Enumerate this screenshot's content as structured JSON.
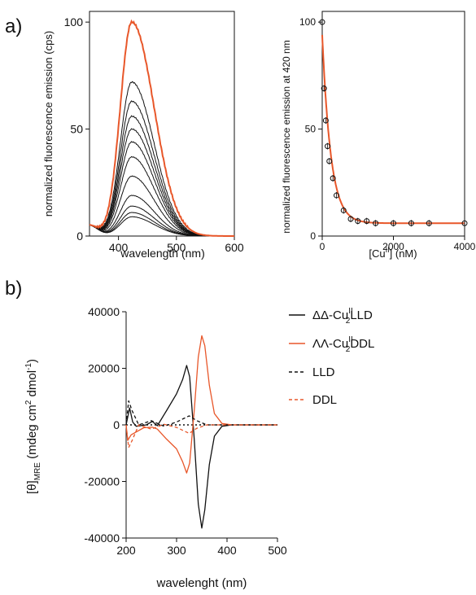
{
  "panels": {
    "a": "a)",
    "b": "b)"
  },
  "chart_data": [
    {
      "id": "a-left",
      "type": "line",
      "xlabel": "wavelength (nm)",
      "ylabel": "normalized fluorescence emission (cps)",
      "xlim": [
        350,
        600
      ],
      "ylim": [
        0,
        105
      ],
      "xticks": [
        "400",
        "500",
        "600"
      ],
      "yticks": [
        "0",
        "50",
        "100"
      ],
      "colors": {
        "highlight": "#e8572a",
        "traces": "#111111"
      },
      "peak_x": 423,
      "series": [
        {
          "peak": 100,
          "highlight": true
        },
        {
          "peak": 72
        },
        {
          "peak": 63
        },
        {
          "peak": 56
        },
        {
          "peak": 50
        },
        {
          "peak": 44
        },
        {
          "peak": 37
        },
        {
          "peak": 28
        },
        {
          "peak": 19
        },
        {
          "peak": 14
        },
        {
          "peak": 11
        },
        {
          "peak": 9
        }
      ]
    },
    {
      "id": "a-right",
      "type": "scatter",
      "xlabel_parts": [
        "[Cu",
        "II",
        "] (nM)"
      ],
      "ylabel": "normalized fluorescence emission at 420 nm",
      "xlim": [
        0,
        4000
      ],
      "ylim": [
        0,
        105
      ],
      "xticks": [
        "0",
        "2000",
        "4000"
      ],
      "yticks": [
        "0",
        "50",
        "100"
      ],
      "points": [
        {
          "x": 0,
          "y": 100
        },
        {
          "x": 50,
          "y": 69
        },
        {
          "x": 100,
          "y": 54
        },
        {
          "x": 150,
          "y": 42
        },
        {
          "x": 200,
          "y": 35
        },
        {
          "x": 300,
          "y": 27
        },
        {
          "x": 400,
          "y": 19
        },
        {
          "x": 600,
          "y": 12
        },
        {
          "x": 800,
          "y": 8
        },
        {
          "x": 1000,
          "y": 7
        },
        {
          "x": 1250,
          "y": 7
        },
        {
          "x": 1500,
          "y": 6
        },
        {
          "x": 2000,
          "y": 6
        },
        {
          "x": 2500,
          "y": 6
        },
        {
          "x": 3000,
          "y": 6
        },
        {
          "x": 4000,
          "y": 6
        }
      ],
      "fit_color": "#e8572a"
    },
    {
      "id": "b",
      "type": "line",
      "xlabel": "wavelenght (nm)",
      "ylabel_parts": [
        "[θ]",
        "MRE",
        " (mdeg cm",
        "2",
        " dmol",
        "-1",
        ")"
      ],
      "xlim": [
        200,
        500
      ],
      "ylim": [
        -40000,
        40000
      ],
      "xticks": [
        "200",
        "300",
        "400",
        "500"
      ],
      "yticks": [
        "40000",
        "20000",
        "0",
        "-20000",
        "-40000"
      ],
      "legend_position": "right",
      "series": [
        {
          "label_parts": [
            "ΔΔ-Cu",
            "II",
            "2",
            "LLD"
          ],
          "color": "#111111",
          "dash": "solid",
          "points": [
            [
              200,
              0
            ],
            [
              207,
              6000
            ],
            [
              213,
              1000
            ],
            [
              220,
              -500
            ],
            [
              240,
              0
            ],
            [
              252,
              1200
            ],
            [
              262,
              -300
            ],
            [
              280,
              5000
            ],
            [
              300,
              11000
            ],
            [
              312,
              16000
            ],
            [
              320,
              21000
            ],
            [
              326,
              17000
            ],
            [
              335,
              -5000
            ],
            [
              343,
              -28000
            ],
            [
              350,
              -36500
            ],
            [
              356,
              -30000
            ],
            [
              365,
              -14000
            ],
            [
              375,
              -4000
            ],
            [
              390,
              -500
            ],
            [
              410,
              0
            ],
            [
              500,
              0
            ]
          ]
        },
        {
          "label_parts": [
            "ΛΛ-Cu",
            "II",
            "2",
            "DDL"
          ],
          "color": "#e8572a",
          "dash": "solid",
          "points": [
            [
              200,
              0
            ],
            [
              203,
              -5500
            ],
            [
              210,
              -3500
            ],
            [
              220,
              -2500
            ],
            [
              235,
              -1000
            ],
            [
              252,
              -800
            ],
            [
              262,
              -1500
            ],
            [
              280,
              -5000
            ],
            [
              300,
              -8500
            ],
            [
              312,
              -13000
            ],
            [
              320,
              -17000
            ],
            [
              326,
              -13500
            ],
            [
              335,
              5000
            ],
            [
              343,
              24000
            ],
            [
              350,
              31500
            ],
            [
              356,
              28000
            ],
            [
              365,
              14000
            ],
            [
              375,
              4000
            ],
            [
              390,
              500
            ],
            [
              410,
              0
            ],
            [
              500,
              0
            ]
          ]
        },
        {
          "label_parts": [
            "LLD"
          ],
          "color": "#111111",
          "dash": "dashed",
          "points": [
            [
              200,
              0
            ],
            [
              205,
              8500
            ],
            [
              212,
              5000
            ],
            [
              225,
              0
            ],
            [
              250,
              1500
            ],
            [
              275,
              -500
            ],
            [
              300,
              1000
            ],
            [
              325,
              3200
            ],
            [
              340,
              1500
            ],
            [
              360,
              0
            ],
            [
              500,
              0
            ]
          ]
        },
        {
          "label_parts": [
            "DDL"
          ],
          "color": "#e8572a",
          "dash": "dashed",
          "points": [
            [
              200,
              0
            ],
            [
              205,
              -8000
            ],
            [
              212,
              -5500
            ],
            [
              225,
              0
            ],
            [
              250,
              -1500
            ],
            [
              275,
              200
            ],
            [
              300,
              -900
            ],
            [
              325,
              -3000
            ],
            [
              340,
              -1200
            ],
            [
              360,
              0
            ],
            [
              500,
              0
            ]
          ]
        }
      ]
    }
  ]
}
